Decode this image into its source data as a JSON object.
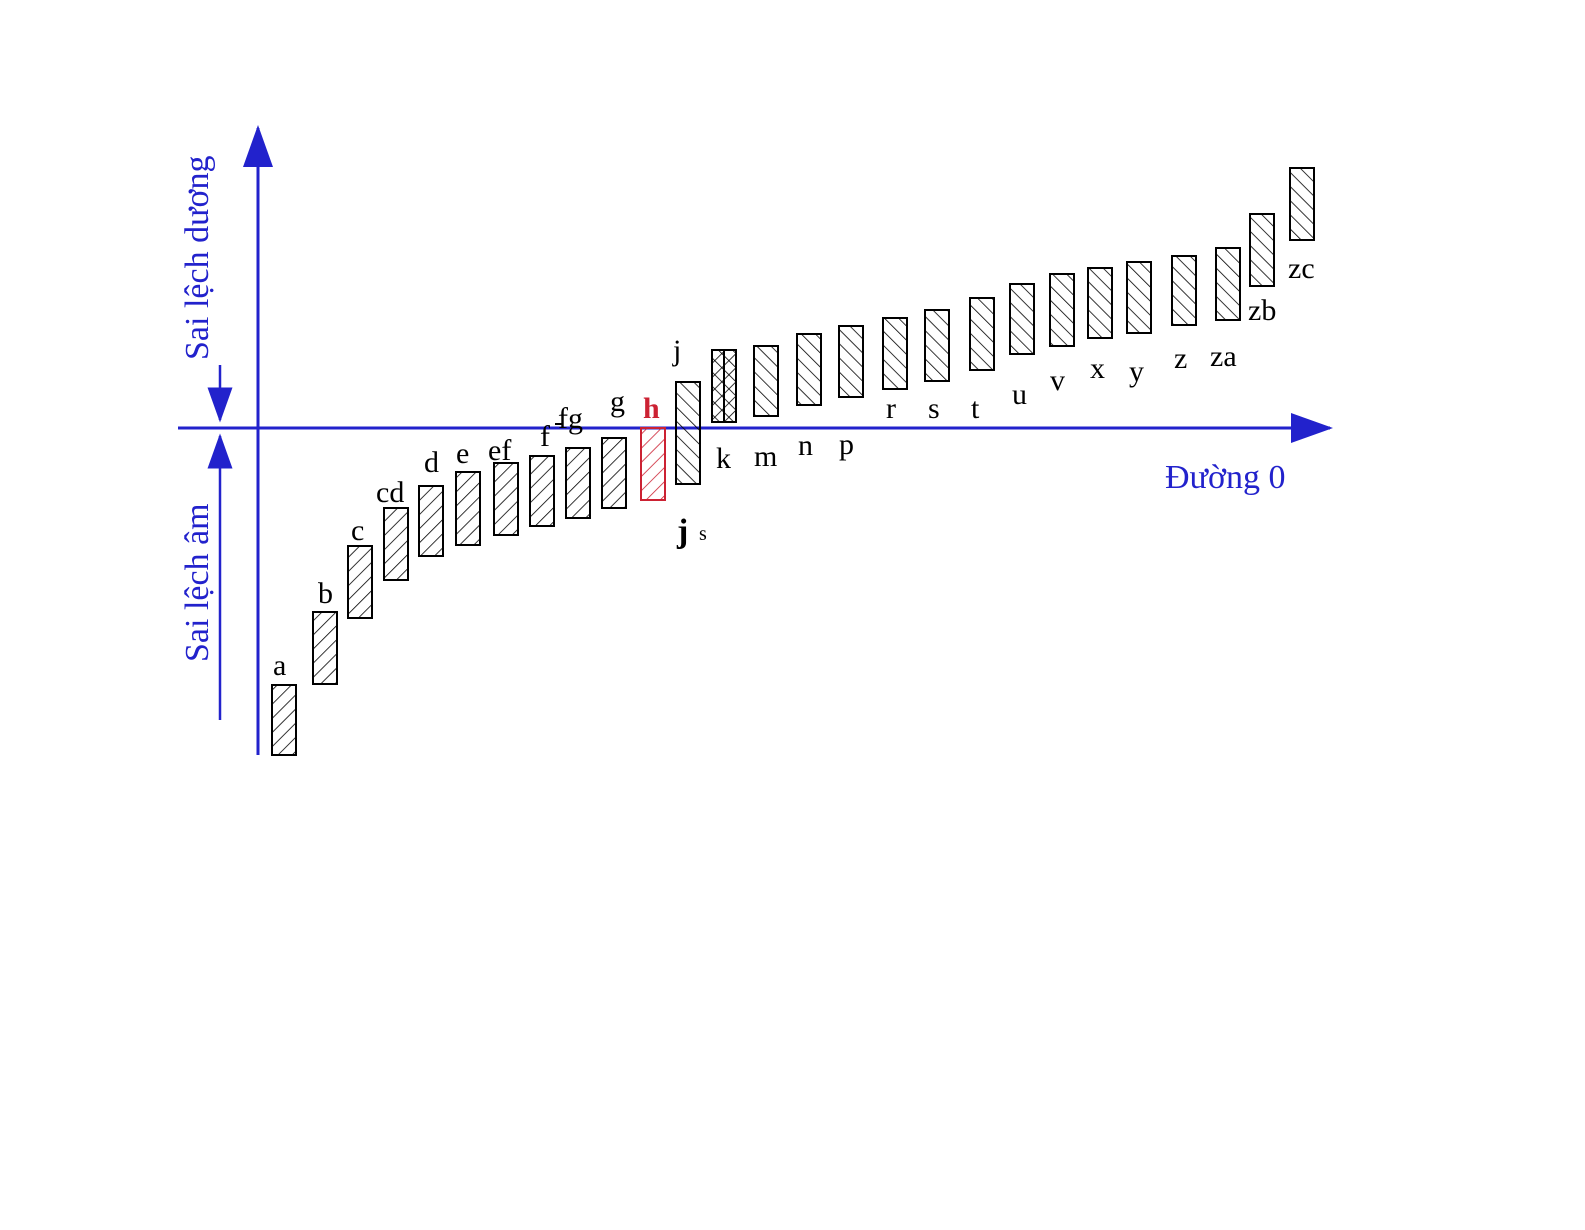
{
  "axis": {
    "positive_label": "Sai lệch dương",
    "negative_label": "Sai lệch âm",
    "zero_line_label": "Đường 0",
    "color": "#2222cc"
  },
  "zones": [
    {
      "id": "a",
      "label": "a"
    },
    {
      "id": "b",
      "label": "b"
    },
    {
      "id": "c",
      "label": "c"
    },
    {
      "id": "cd",
      "label": "cd"
    },
    {
      "id": "d",
      "label": "d"
    },
    {
      "id": "e",
      "label": "e"
    },
    {
      "id": "ef",
      "label": "ef"
    },
    {
      "id": "f",
      "label": "f"
    },
    {
      "id": "fg",
      "label": "fg"
    },
    {
      "id": "g",
      "label": "g"
    },
    {
      "id": "h",
      "label": "h",
      "highlight": true,
      "color": "#cc2233"
    },
    {
      "id": "j",
      "label": "j"
    },
    {
      "id": "js",
      "label": "j",
      "sub": "s"
    },
    {
      "id": "k",
      "label": "k"
    },
    {
      "id": "m",
      "label": "m"
    },
    {
      "id": "n",
      "label": "n"
    },
    {
      "id": "p",
      "label": "p"
    },
    {
      "id": "r",
      "label": "r"
    },
    {
      "id": "s",
      "label": "s"
    },
    {
      "id": "t",
      "label": "t"
    },
    {
      "id": "u",
      "label": "u"
    },
    {
      "id": "v",
      "label": "v"
    },
    {
      "id": "x",
      "label": "x"
    },
    {
      "id": "y",
      "label": "y"
    },
    {
      "id": "z",
      "label": "z"
    },
    {
      "id": "za",
      "label": "za"
    },
    {
      "id": "zb",
      "label": "zb"
    },
    {
      "id": "zc",
      "label": "zc"
    }
  ],
  "colors": {
    "hatch": "#000000",
    "highlight": "#cc2233",
    "axis": "#2222cc"
  }
}
